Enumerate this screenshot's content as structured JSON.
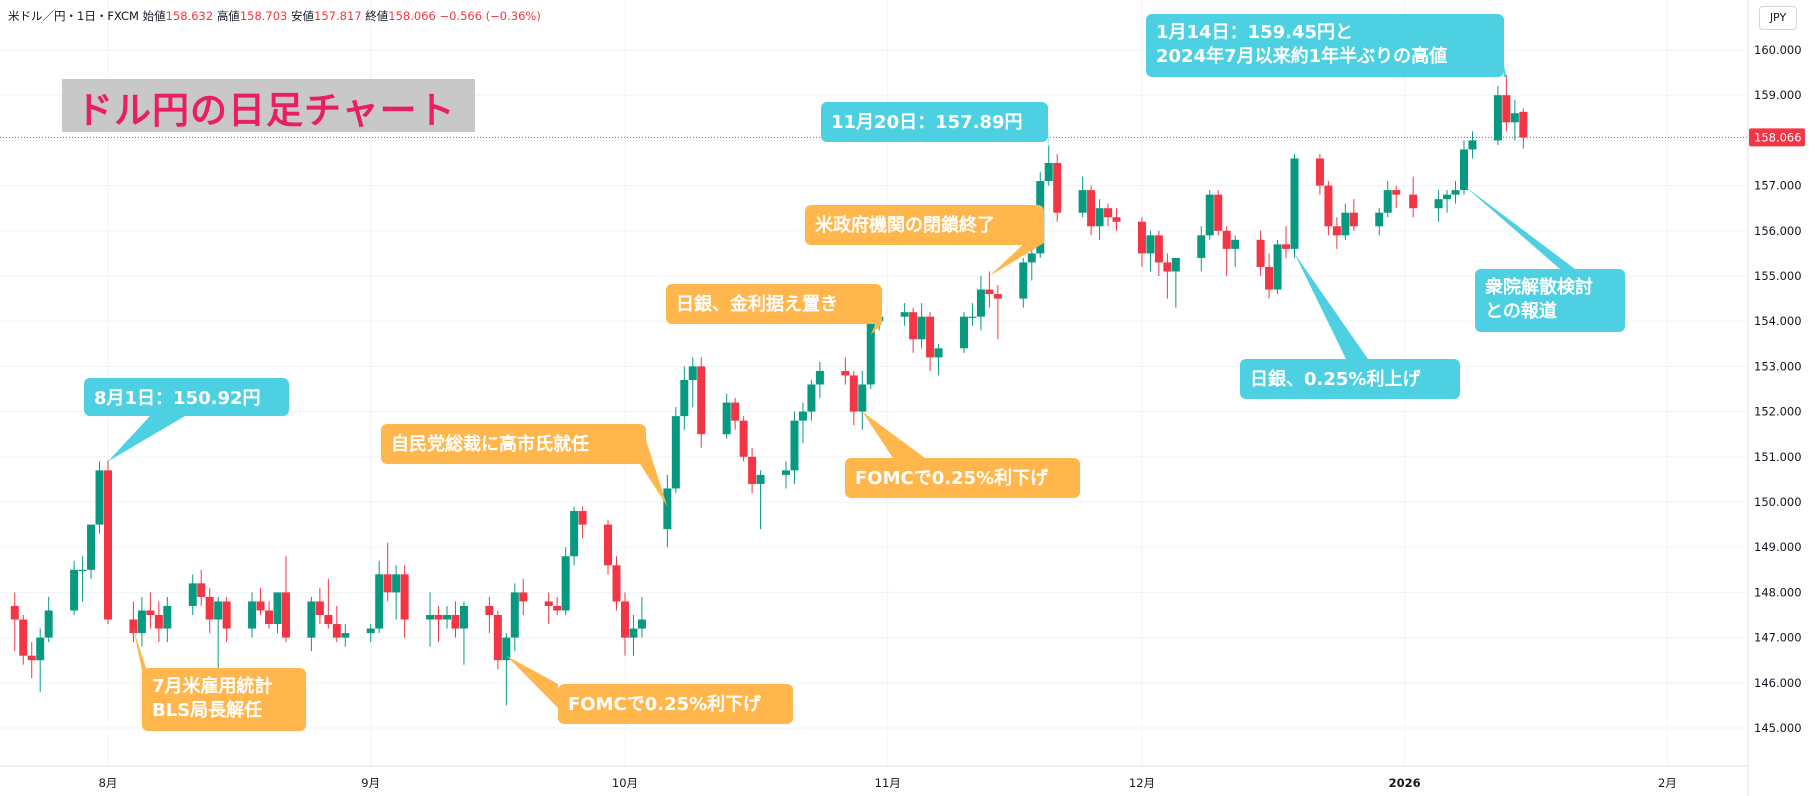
{
  "header": {
    "symbol": "米ドル／円・1日・FXCM",
    "open_label": "始値",
    "open": "158.632",
    "high_label": "高値",
    "high": "158.703",
    "low_label": "安値",
    "low": "157.817",
    "close_label": "終値",
    "close": "158.066",
    "change": "−0.566 (−0.36%)"
  },
  "currency_label": "JPY",
  "colors": {
    "up": "#089981",
    "down": "#f23645",
    "blue_callout": "#4dd0e1",
    "orange_callout": "#ffb74d",
    "title": "#e91e63"
  },
  "chart_data": {
    "type": "candlestick",
    "title": "ドル円の日足チャート",
    "ylim": [
      144.4,
      160.6
    ],
    "y_ticks": [
      "145.000",
      "146.000",
      "147.000",
      "148.000",
      "149.000",
      "150.000",
      "151.000",
      "152.000",
      "153.000",
      "154.000",
      "155.000",
      "156.000",
      "157.000",
      "158.000",
      "159.000",
      "160.000"
    ],
    "x_ticks": [
      {
        "label": "8月",
        "date": "2025-08-01"
      },
      {
        "label": "9月",
        "date": "2025-09-01"
      },
      {
        "label": "10月",
        "date": "2025-10-01"
      },
      {
        "label": "11月",
        "date": "2025-11-01"
      },
      {
        "label": "12月",
        "date": "2025-12-01"
      },
      {
        "label": "2026",
        "date": "2026-01-01"
      },
      {
        "label": "2月",
        "date": "2026-02-01"
      }
    ],
    "last_price": "158.066",
    "candles": [
      {
        "date": "2025-07-21",
        "o": 147.7,
        "h": 148.0,
        "l": 146.7,
        "c": 147.4
      },
      {
        "date": "2025-07-22",
        "o": 147.4,
        "h": 147.5,
        "l": 146.4,
        "c": 146.6
      },
      {
        "date": "2025-07-23",
        "o": 146.6,
        "h": 146.9,
        "l": 146.1,
        "c": 146.5
      },
      {
        "date": "2025-07-24",
        "o": 146.5,
        "h": 147.2,
        "l": 145.8,
        "c": 147.0
      },
      {
        "date": "2025-07-25",
        "o": 147.0,
        "h": 147.9,
        "l": 146.9,
        "c": 147.6
      },
      {
        "date": "2025-07-28",
        "o": 147.6,
        "h": 148.7,
        "l": 147.5,
        "c": 148.5
      },
      {
        "date": "2025-07-29",
        "o": 148.5,
        "h": 148.8,
        "l": 147.8,
        "c": 148.5
      },
      {
        "date": "2025-07-30",
        "o": 148.5,
        "h": 149.5,
        "l": 148.3,
        "c": 149.5
      },
      {
        "date": "2025-07-31",
        "o": 149.5,
        "h": 150.9,
        "l": 149.3,
        "c": 150.7
      },
      {
        "date": "2025-08-01",
        "o": 150.7,
        "h": 150.92,
        "l": 147.3,
        "c": 147.4
      },
      {
        "date": "2025-08-04",
        "o": 147.4,
        "h": 147.8,
        "l": 146.9,
        "c": 147.1
      },
      {
        "date": "2025-08-05",
        "o": 147.1,
        "h": 147.9,
        "l": 146.8,
        "c": 147.6
      },
      {
        "date": "2025-08-06",
        "o": 147.6,
        "h": 148.0,
        "l": 147.2,
        "c": 147.5
      },
      {
        "date": "2025-08-07",
        "o": 147.5,
        "h": 147.8,
        "l": 146.9,
        "c": 147.2
      },
      {
        "date": "2025-08-08",
        "o": 147.2,
        "h": 147.9,
        "l": 146.9,
        "c": 147.7
      },
      {
        "date": "2025-08-11",
        "o": 147.7,
        "h": 148.4,
        "l": 147.5,
        "c": 148.2
      },
      {
        "date": "2025-08-12",
        "o": 148.2,
        "h": 148.5,
        "l": 147.7,
        "c": 147.9
      },
      {
        "date": "2025-08-13",
        "o": 147.9,
        "h": 148.1,
        "l": 147.1,
        "c": 147.4
      },
      {
        "date": "2025-08-14",
        "o": 147.4,
        "h": 147.9,
        "l": 146.3,
        "c": 147.8
      },
      {
        "date": "2025-08-15",
        "o": 147.8,
        "h": 147.9,
        "l": 146.9,
        "c": 147.2
      },
      {
        "date": "2025-08-18",
        "o": 147.2,
        "h": 148.0,
        "l": 147.0,
        "c": 147.8
      },
      {
        "date": "2025-08-19",
        "o": 147.8,
        "h": 148.1,
        "l": 147.5,
        "c": 147.6
      },
      {
        "date": "2025-08-20",
        "o": 147.6,
        "h": 147.8,
        "l": 147.2,
        "c": 147.3
      },
      {
        "date": "2025-08-21",
        "o": 147.3,
        "h": 148.0,
        "l": 147.1,
        "c": 148.0
      },
      {
        "date": "2025-08-22",
        "o": 148.0,
        "h": 148.8,
        "l": 146.9,
        "c": 147.0
      },
      {
        "date": "2025-08-25",
        "o": 147.0,
        "h": 147.9,
        "l": 146.7,
        "c": 147.8
      },
      {
        "date": "2025-08-26",
        "o": 147.8,
        "h": 148.1,
        "l": 147.3,
        "c": 147.5
      },
      {
        "date": "2025-08-27",
        "o": 147.5,
        "h": 148.3,
        "l": 147.2,
        "c": 147.3
      },
      {
        "date": "2025-08-28",
        "o": 147.3,
        "h": 147.7,
        "l": 146.9,
        "c": 147.0
      },
      {
        "date": "2025-08-29",
        "o": 147.0,
        "h": 147.3,
        "l": 146.8,
        "c": 147.1
      },
      {
        "date": "2025-09-01",
        "o": 147.1,
        "h": 147.3,
        "l": 146.9,
        "c": 147.2
      },
      {
        "date": "2025-09-02",
        "o": 147.2,
        "h": 148.7,
        "l": 147.1,
        "c": 148.4
      },
      {
        "date": "2025-09-03",
        "o": 148.4,
        "h": 149.1,
        "l": 147.8,
        "c": 148.0
      },
      {
        "date": "2025-09-04",
        "o": 148.0,
        "h": 148.6,
        "l": 147.4,
        "c": 148.4
      },
      {
        "date": "2025-09-05",
        "o": 148.4,
        "h": 148.6,
        "l": 147.0,
        "c": 147.4
      },
      {
        "date": "2025-09-08",
        "o": 147.4,
        "h": 148.0,
        "l": 146.8,
        "c": 147.5
      },
      {
        "date": "2025-09-09",
        "o": 147.5,
        "h": 147.7,
        "l": 146.9,
        "c": 147.4
      },
      {
        "date": "2025-09-10",
        "o": 147.4,
        "h": 147.7,
        "l": 147.2,
        "c": 147.5
      },
      {
        "date": "2025-09-11",
        "o": 147.5,
        "h": 147.8,
        "l": 147.0,
        "c": 147.2
      },
      {
        "date": "2025-09-12",
        "o": 147.2,
        "h": 147.8,
        "l": 146.4,
        "c": 147.7
      },
      {
        "date": "2025-09-15",
        "o": 147.7,
        "h": 147.9,
        "l": 147.1,
        "c": 147.5
      },
      {
        "date": "2025-09-16",
        "o": 147.5,
        "h": 147.6,
        "l": 146.3,
        "c": 146.5
      },
      {
        "date": "2025-09-17",
        "o": 146.5,
        "h": 147.1,
        "l": 145.5,
        "c": 147.0
      },
      {
        "date": "2025-09-18",
        "o": 147.0,
        "h": 148.2,
        "l": 146.7,
        "c": 148.0
      },
      {
        "date": "2025-09-19",
        "o": 148.0,
        "h": 148.3,
        "l": 147.5,
        "c": 147.8
      },
      {
        "date": "2025-09-22",
        "o": 147.8,
        "h": 148.0,
        "l": 147.3,
        "c": 147.7
      },
      {
        "date": "2025-09-23",
        "o": 147.7,
        "h": 147.9,
        "l": 147.5,
        "c": 147.6
      },
      {
        "date": "2025-09-24",
        "o": 147.6,
        "h": 149.0,
        "l": 147.5,
        "c": 148.8
      },
      {
        "date": "2025-09-25",
        "o": 148.8,
        "h": 149.9,
        "l": 148.6,
        "c": 149.8
      },
      {
        "date": "2025-09-26",
        "o": 149.8,
        "h": 149.9,
        "l": 149.2,
        "c": 149.5
      },
      {
        "date": "2025-09-29",
        "o": 149.5,
        "h": 149.6,
        "l": 148.4,
        "c": 148.6
      },
      {
        "date": "2025-09-30",
        "o": 148.6,
        "h": 148.8,
        "l": 147.6,
        "c": 147.8
      },
      {
        "date": "2025-10-01",
        "o": 147.8,
        "h": 148.0,
        "l": 146.6,
        "c": 147.0
      },
      {
        "date": "2025-10-02",
        "o": 147.0,
        "h": 147.5,
        "l": 146.6,
        "c": 147.2
      },
      {
        "date": "2025-10-03",
        "o": 147.2,
        "h": 147.9,
        "l": 147.0,
        "c": 147.4
      },
      {
        "date": "2025-10-06",
        "o": 149.4,
        "h": 150.6,
        "l": 149.0,
        "c": 150.3
      },
      {
        "date": "2025-10-07",
        "o": 150.3,
        "h": 152.1,
        "l": 150.2,
        "c": 151.9
      },
      {
        "date": "2025-10-08",
        "o": 151.9,
        "h": 153.0,
        "l": 151.6,
        "c": 152.7
      },
      {
        "date": "2025-10-09",
        "o": 152.7,
        "h": 153.2,
        "l": 152.1,
        "c": 153.0
      },
      {
        "date": "2025-10-10",
        "o": 153.0,
        "h": 153.2,
        "l": 151.2,
        "c": 151.5
      },
      {
        "date": "2025-10-13",
        "o": 151.5,
        "h": 152.4,
        "l": 151.4,
        "c": 152.2
      },
      {
        "date": "2025-10-14",
        "o": 152.2,
        "h": 152.3,
        "l": 151.6,
        "c": 151.8
      },
      {
        "date": "2025-10-15",
        "o": 151.8,
        "h": 151.9,
        "l": 150.9,
        "c": 151.0
      },
      {
        "date": "2025-10-16",
        "o": 151.0,
        "h": 151.2,
        "l": 150.2,
        "c": 150.4
      },
      {
        "date": "2025-10-17",
        "o": 150.4,
        "h": 150.7,
        "l": 149.4,
        "c": 150.6
      },
      {
        "date": "2025-10-20",
        "o": 150.6,
        "h": 150.9,
        "l": 150.3,
        "c": 150.7
      },
      {
        "date": "2025-10-21",
        "o": 150.7,
        "h": 152.0,
        "l": 150.4,
        "c": 151.8
      },
      {
        "date": "2025-10-22",
        "o": 151.8,
        "h": 152.2,
        "l": 151.3,
        "c": 152.0
      },
      {
        "date": "2025-10-23",
        "o": 152.0,
        "h": 152.7,
        "l": 151.8,
        "c": 152.6
      },
      {
        "date": "2025-10-24",
        "o": 152.6,
        "h": 153.1,
        "l": 152.3,
        "c": 152.9
      },
      {
        "date": "2025-10-27",
        "o": 152.9,
        "h": 153.2,
        "l": 152.6,
        "c": 152.8
      },
      {
        "date": "2025-10-28",
        "o": 152.8,
        "h": 152.9,
        "l": 151.7,
        "c": 152.0
      },
      {
        "date": "2025-10-29",
        "o": 152.0,
        "h": 152.9,
        "l": 151.6,
        "c": 152.6
      },
      {
        "date": "2025-10-30",
        "o": 152.6,
        "h": 154.2,
        "l": 152.5,
        "c": 154.0
      },
      {
        "date": "2025-10-31",
        "o": 154.0,
        "h": 154.4,
        "l": 153.8,
        "c": 154.1
      },
      {
        "date": "2025-11-03",
        "o": 154.1,
        "h": 154.4,
        "l": 153.9,
        "c": 154.2
      },
      {
        "date": "2025-11-04",
        "o": 154.2,
        "h": 154.3,
        "l": 153.3,
        "c": 153.6
      },
      {
        "date": "2025-11-05",
        "o": 153.6,
        "h": 154.4,
        "l": 153.4,
        "c": 154.1
      },
      {
        "date": "2025-11-06",
        "o": 154.1,
        "h": 154.2,
        "l": 152.9,
        "c": 153.2
      },
      {
        "date": "2025-11-07",
        "o": 153.2,
        "h": 153.5,
        "l": 152.8,
        "c": 153.4
      },
      {
        "date": "2025-11-10",
        "o": 153.4,
        "h": 154.2,
        "l": 153.3,
        "c": 154.1
      },
      {
        "date": "2025-11-11",
        "o": 154.1,
        "h": 154.4,
        "l": 153.9,
        "c": 154.1
      },
      {
        "date": "2025-11-12",
        "o": 154.1,
        "h": 155.0,
        "l": 153.8,
        "c": 154.7
      },
      {
        "date": "2025-11-13",
        "o": 154.7,
        "h": 155.1,
        "l": 154.3,
        "c": 154.6
      },
      {
        "date": "2025-11-14",
        "o": 154.6,
        "h": 154.8,
        "l": 153.6,
        "c": 154.5
      },
      {
        "date": "2025-11-17",
        "o": 154.5,
        "h": 155.4,
        "l": 154.3,
        "c": 155.3
      },
      {
        "date": "2025-11-18",
        "o": 155.3,
        "h": 155.7,
        "l": 154.9,
        "c": 155.5
      },
      {
        "date": "2025-11-19",
        "o": 155.5,
        "h": 157.3,
        "l": 155.4,
        "c": 157.1
      },
      {
        "date": "2025-11-20",
        "o": 157.1,
        "h": 157.89,
        "l": 157.0,
        "c": 157.5
      },
      {
        "date": "2025-11-21",
        "o": 157.5,
        "h": 157.7,
        "l": 156.2,
        "c": 156.4
      },
      {
        "date": "2025-11-24",
        "o": 156.4,
        "h": 157.2,
        "l": 156.3,
        "c": 156.9
      },
      {
        "date": "2025-11-25",
        "o": 156.9,
        "h": 157.0,
        "l": 155.9,
        "c": 156.1
      },
      {
        "date": "2025-11-26",
        "o": 156.1,
        "h": 156.7,
        "l": 155.8,
        "c": 156.5
      },
      {
        "date": "2025-11-27",
        "o": 156.5,
        "h": 156.6,
        "l": 156.1,
        "c": 156.3
      },
      {
        "date": "2025-11-28",
        "o": 156.3,
        "h": 156.5,
        "l": 156.0,
        "c": 156.2
      },
      {
        "date": "2025-12-01",
        "o": 156.2,
        "h": 156.3,
        "l": 155.2,
        "c": 155.5
      },
      {
        "date": "2025-12-02",
        "o": 155.5,
        "h": 156.0,
        "l": 155.1,
        "c": 155.9
      },
      {
        "date": "2025-12-03",
        "o": 155.9,
        "h": 156.0,
        "l": 155.0,
        "c": 155.3
      },
      {
        "date": "2025-12-04",
        "o": 155.3,
        "h": 155.5,
        "l": 154.5,
        "c": 155.1
      },
      {
        "date": "2025-12-05",
        "o": 155.1,
        "h": 155.3,
        "l": 154.3,
        "c": 155.4
      },
      {
        "date": "2025-12-08",
        "o": 155.4,
        "h": 156.1,
        "l": 155.1,
        "c": 155.9
      },
      {
        "date": "2025-12-09",
        "o": 155.9,
        "h": 156.9,
        "l": 155.8,
        "c": 156.8
      },
      {
        "date": "2025-12-10",
        "o": 156.8,
        "h": 156.9,
        "l": 155.9,
        "c": 156.0
      },
      {
        "date": "2025-12-11",
        "o": 156.0,
        "h": 156.1,
        "l": 155.0,
        "c": 155.6
      },
      {
        "date": "2025-12-12",
        "o": 155.6,
        "h": 155.9,
        "l": 155.2,
        "c": 155.8
      },
      {
        "date": "2025-12-15",
        "o": 155.8,
        "h": 156.0,
        "l": 155.0,
        "c": 155.2
      },
      {
        "date": "2025-12-16",
        "o": 155.2,
        "h": 155.5,
        "l": 154.5,
        "c": 154.7
      },
      {
        "date": "2025-12-17",
        "o": 154.7,
        "h": 155.8,
        "l": 154.6,
        "c": 155.7
      },
      {
        "date": "2025-12-18",
        "o": 155.7,
        "h": 156.1,
        "l": 155.4,
        "c": 155.6
      },
      {
        "date": "2025-12-19",
        "o": 155.6,
        "h": 157.7,
        "l": 155.4,
        "c": 157.6
      },
      {
        "date": "2025-12-22",
        "o": 157.6,
        "h": 157.7,
        "l": 156.8,
        "c": 157.0
      },
      {
        "date": "2025-12-23",
        "o": 157.0,
        "h": 157.1,
        "l": 155.9,
        "c": 156.1
      },
      {
        "date": "2025-12-24",
        "o": 156.1,
        "h": 156.3,
        "l": 155.6,
        "c": 155.9
      },
      {
        "date": "2025-12-25",
        "o": 155.9,
        "h": 156.6,
        "l": 155.8,
        "c": 156.4
      },
      {
        "date": "2025-12-26",
        "o": 156.4,
        "h": 156.7,
        "l": 156.0,
        "c": 156.1
      },
      {
        "date": "2025-12-29",
        "o": 156.1,
        "h": 156.5,
        "l": 155.9,
        "c": 156.4
      },
      {
        "date": "2025-12-30",
        "o": 156.4,
        "h": 157.1,
        "l": 156.3,
        "c": 156.9
      },
      {
        "date": "2025-12-31",
        "o": 156.9,
        "h": 157.0,
        "l": 156.5,
        "c": 156.8
      },
      {
        "date": "2026-01-02",
        "o": 156.8,
        "h": 157.2,
        "l": 156.3,
        "c": 156.5
      },
      {
        "date": "2026-01-05",
        "o": 156.5,
        "h": 156.9,
        "l": 156.2,
        "c": 156.7
      },
      {
        "date": "2026-01-06",
        "o": 156.7,
        "h": 156.9,
        "l": 156.4,
        "c": 156.8
      },
      {
        "date": "2026-01-07",
        "o": 156.8,
        "h": 157.1,
        "l": 156.6,
        "c": 156.9
      },
      {
        "date": "2026-01-08",
        "o": 156.9,
        "h": 158.0,
        "l": 156.8,
        "c": 157.8
      },
      {
        "date": "2026-01-09",
        "o": 157.8,
        "h": 158.2,
        "l": 157.6,
        "c": 158.0
      },
      {
        "date": "2026-01-12",
        "o": 158.0,
        "h": 159.2,
        "l": 157.9,
        "c": 159.0
      },
      {
        "date": "2026-01-13",
        "o": 159.0,
        "h": 159.45,
        "l": 158.2,
        "c": 158.4
      },
      {
        "date": "2026-01-14",
        "o": 158.4,
        "h": 158.9,
        "l": 158.0,
        "c": 158.6
      },
      {
        "date": "2026-01-15",
        "o": 158.632,
        "h": 158.703,
        "l": 157.817,
        "c": 158.066
      }
    ],
    "annotations": [
      {
        "text": [
          "8月1日：150.92円"
        ],
        "color": "blue",
        "date": "2025-08-01",
        "price": 150.9
      },
      {
        "text": [
          "7月米雇用統計",
          "BLS局長解任"
        ],
        "color": "orange",
        "date": "2025-08-04",
        "price": 147.2
      },
      {
        "text": [
          "FOMCで0.25%利下げ"
        ],
        "color": "orange",
        "date": "2025-09-17",
        "price": 146.6
      },
      {
        "text": [
          "自民党総裁に高市氏就任"
        ],
        "color": "orange",
        "date": "2025-10-06",
        "price": 149.9
      },
      {
        "text": [
          "日銀、金利据え置き"
        ],
        "color": "orange",
        "date": "2025-10-30",
        "price": 153.7
      },
      {
        "text": [
          "FOMCで0.25%利下げ"
        ],
        "color": "orange",
        "date": "2025-10-29",
        "price": 152.0
      },
      {
        "text": [
          "米政府機関の閉鎖終了"
        ],
        "color": "orange",
        "date": "2025-11-13",
        "price": 155.0
      },
      {
        "text": [
          "11月20日：157.89円"
        ],
        "color": "blue",
        "date": "2025-11-20",
        "price": 157.85
      },
      {
        "text": [
          "1月14日：159.45円と",
          "2024年7月以来約1年半ぶりの高値"
        ],
        "color": "blue",
        "date": "2026-01-13",
        "price": 159.4
      },
      {
        "text": [
          "日銀、0.25%利上げ"
        ],
        "color": "blue",
        "date": "2025-12-19",
        "price": 155.5
      },
      {
        "text": [
          "衆院解散検討",
          "との報道"
        ],
        "color": "blue",
        "date": "2026-01-08",
        "price": 157.0
      }
    ]
  }
}
